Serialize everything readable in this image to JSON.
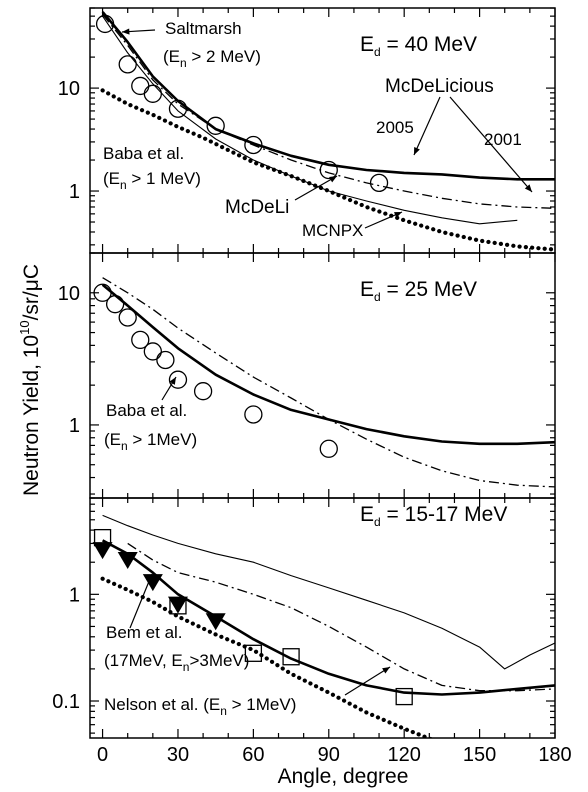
{
  "chart_data": {
    "type": "line",
    "xlabel": "Angle, degree",
    "ylabel_main": "Neutron Yield,",
    "ylabel_base": "10",
    "ylabel_exp": "10",
    "ylabel_unit": "/sr/μC",
    "x_ticks": [
      "0",
      "30",
      "60",
      "90",
      "120",
      "150",
      "180"
    ],
    "xlim": [
      -5,
      180
    ],
    "panels": [
      {
        "title": {
          "pre": "E",
          "sub": "d",
          "post": " = 40 MeV"
        },
        "yscale": "log",
        "ylim": [
          0.25,
          60
        ],
        "y_ticks": [
          {
            "v": 1,
            "label": "1"
          },
          {
            "v": 10,
            "label": "10"
          }
        ],
        "series": [
          {
            "name": "McDeLicious 2005",
            "style": "solid-thick",
            "points": [
              [
                0,
                55
              ],
              [
                10,
                28
              ],
              [
                20,
                13
              ],
              [
                30,
                7.5
              ],
              [
                45,
                4
              ],
              [
                60,
                2.9
              ],
              [
                75,
                2.2
              ],
              [
                90,
                1.8
              ],
              [
                105,
                1.6
              ],
              [
                120,
                1.5
              ],
              [
                135,
                1.45
              ],
              [
                150,
                1.35
              ],
              [
                165,
                1.3
              ],
              [
                180,
                1.3
              ]
            ]
          },
          {
            "name": "McDeLicious 2001",
            "style": "dashdot",
            "points": [
              [
                0,
                52
              ],
              [
                10,
                26
              ],
              [
                20,
                12
              ],
              [
                30,
                7
              ],
              [
                45,
                4
              ],
              [
                60,
                2.8
              ],
              [
                75,
                2
              ],
              [
                90,
                1.5
              ],
              [
                105,
                1.2
              ],
              [
                120,
                1
              ],
              [
                135,
                0.85
              ],
              [
                150,
                0.75
              ],
              [
                165,
                0.7
              ],
              [
                180,
                0.68
              ]
            ]
          },
          {
            "name": "McDeLi",
            "style": "solid-thin",
            "points": [
              [
                0,
                50
              ],
              [
                10,
                22
              ],
              [
                20,
                11
              ],
              [
                30,
                6
              ],
              [
                45,
                3.2
              ],
              [
                60,
                2
              ],
              [
                75,
                1.4
              ],
              [
                90,
                1
              ],
              [
                105,
                0.8
              ],
              [
                120,
                0.65
              ],
              [
                135,
                0.55
              ],
              [
                150,
                0.48
              ],
              [
                165,
                0.52
              ]
            ]
          },
          {
            "name": "MCNPX",
            "style": "dotted",
            "points": [
              [
                0,
                9.5
              ],
              [
                10,
                7
              ],
              [
                20,
                5.5
              ],
              [
                30,
                4.2
              ],
              [
                40,
                3.3
              ],
              [
                50,
                2.5
              ],
              [
                60,
                1.9
              ],
              [
                75,
                1.4
              ],
              [
                90,
                1
              ],
              [
                105,
                0.7
              ],
              [
                120,
                0.52
              ],
              [
                135,
                0.4
              ],
              [
                150,
                0.33
              ],
              [
                165,
                0.29
              ],
              [
                180,
                0.27
              ]
            ]
          }
        ],
        "experiments": [
          {
            "name": "Saltmarsh",
            "marker": "circle",
            "points": [
              [
                1,
                42
              ]
            ]
          },
          {
            "name": "Baba et al.",
            "marker": "circle",
            "points": [
              [
                10,
                17
              ],
              [
                15,
                10.5
              ],
              [
                20,
                8.8
              ],
              [
                30,
                6.3
              ],
              [
                45,
                4.3
              ],
              [
                60,
                2.8
              ],
              [
                90,
                1.6
              ],
              [
                110,
                1.2
              ]
            ]
          }
        ],
        "annotations": {
          "saltmarsh": "Saltmarsh",
          "saltmarsh_cond": {
            "pre": "(E",
            "sub": "n",
            "post": " > 2 MeV)"
          },
          "mcdelicious": "McDeLicious",
          "y2005": "2005",
          "y2001": "2001",
          "baba": "Baba et al.",
          "baba_cond": {
            "pre": "(E",
            "sub": "n",
            "post": " > 1 MeV)"
          },
          "mcdeli": "McDeLi",
          "mcnpx": "MCNPX"
        }
      },
      {
        "title": {
          "pre": "E",
          "sub": "d",
          "post": " = 25 MeV"
        },
        "yscale": "log",
        "ylim": [
          0.28,
          20
        ],
        "y_ticks": [
          {
            "v": 1,
            "label": "1"
          },
          {
            "v": 10,
            "label": "10"
          }
        ],
        "series": [
          {
            "name": "McDeLicious 2005",
            "style": "solid-thick",
            "points": [
              [
                0,
                11.5
              ],
              [
                10,
                8
              ],
              [
                20,
                5.5
              ],
              [
                30,
                3.8
              ],
              [
                45,
                2.4
              ],
              [
                60,
                1.7
              ],
              [
                75,
                1.3
              ],
              [
                90,
                1.1
              ],
              [
                105,
                0.93
              ],
              [
                120,
                0.82
              ],
              [
                135,
                0.75
              ],
              [
                150,
                0.72
              ],
              [
                165,
                0.72
              ],
              [
                180,
                0.74
              ]
            ]
          },
          {
            "name": "McDeLicious 2001",
            "style": "dashdot",
            "points": [
              [
                0,
                13
              ],
              [
                10,
                10
              ],
              [
                20,
                7.5
              ],
              [
                30,
                5.4
              ],
              [
                45,
                3.5
              ],
              [
                60,
                2.3
              ],
              [
                75,
                1.6
              ],
              [
                90,
                1.1
              ],
              [
                105,
                0.78
              ],
              [
                120,
                0.57
              ],
              [
                135,
                0.45
              ],
              [
                150,
                0.38
              ],
              [
                165,
                0.35
              ],
              [
                180,
                0.34
              ]
            ]
          }
        ],
        "experiments": [
          {
            "name": "Baba et al.",
            "marker": "circle",
            "points": [
              [
                0,
                10
              ],
              [
                5,
                8.2
              ],
              [
                10,
                6.5
              ],
              [
                15,
                4.4
              ],
              [
                20,
                3.6
              ],
              [
                25,
                3.1
              ],
              [
                30,
                2.2
              ],
              [
                40,
                1.8
              ],
              [
                60,
                1.2
              ],
              [
                90,
                0.66
              ]
            ]
          }
        ],
        "annotations": {
          "baba": "Baba et al.",
          "baba_cond": {
            "pre": "(E",
            "sub": "n",
            "post": " > 1MeV)"
          }
        }
      },
      {
        "title": {
          "pre": "E",
          "sub": "d",
          "post": " = 15-17 MeV"
        },
        "yscale": "log",
        "ylim": [
          0.045,
          8
        ],
        "y_ticks": [
          {
            "v": 0.1,
            "label": "0.1"
          },
          {
            "v": 1,
            "label": "1"
          }
        ],
        "series": [
          {
            "name": "McDeLicious 2005",
            "style": "solid-thick",
            "points": [
              [
                0,
                3.2
              ],
              [
                10,
                2.4
              ],
              [
                20,
                1.6
              ],
              [
                30,
                1
              ],
              [
                45,
                0.62
              ],
              [
                60,
                0.38
              ],
              [
                75,
                0.25
              ],
              [
                90,
                0.18
              ],
              [
                105,
                0.14
              ],
              [
                120,
                0.12
              ],
              [
                135,
                0.115
              ],
              [
                150,
                0.12
              ],
              [
                165,
                0.13
              ],
              [
                180,
                0.14
              ]
            ]
          },
          {
            "name": "McDeLicious 2001",
            "style": "dashdot",
            "points": [
              [
                10,
                3
              ],
              [
                20,
                2.1
              ],
              [
                30,
                1.6
              ],
              [
                45,
                1.3
              ],
              [
                60,
                1
              ],
              [
                75,
                0.75
              ],
              [
                90,
                0.5
              ],
              [
                105,
                0.32
              ],
              [
                120,
                0.2
              ],
              [
                135,
                0.14
              ],
              [
                150,
                0.125
              ],
              [
                165,
                0.125
              ],
              [
                180,
                0.13
              ]
            ]
          },
          {
            "name": "McDeLi",
            "style": "solid-thin",
            "points": [
              [
                0,
                5.5
              ],
              [
                10,
                4.4
              ],
              [
                20,
                3.6
              ],
              [
                30,
                3
              ],
              [
                45,
                2.4
              ],
              [
                60,
                2
              ],
              [
                75,
                1.5
              ],
              [
                90,
                1.15
              ],
              [
                105,
                0.88
              ],
              [
                120,
                0.67
              ],
              [
                135,
                0.48
              ],
              [
                150,
                0.32
              ],
              [
                160,
                0.2
              ],
              [
                170,
                0.27
              ],
              [
                180,
                0.35
              ]
            ]
          },
          {
            "name": "MCNPX",
            "style": "dotted",
            "points": [
              [
                0,
                1.4
              ],
              [
                10,
                1.1
              ],
              [
                20,
                0.85
              ],
              [
                30,
                0.62
              ],
              [
                45,
                0.42
              ],
              [
                60,
                0.3
              ],
              [
                75,
                0.18
              ],
              [
                90,
                0.12
              ],
              [
                105,
                0.078
              ],
              [
                120,
                0.055
              ],
              [
                135,
                0.04
              ]
            ]
          }
        ],
        "experiments": [
          {
            "name": "Bem et al.",
            "marker": "triangle-down",
            "points": [
              [
                0,
                2.6
              ],
              [
                10,
                2.1
              ],
              [
                20,
                1.3
              ],
              [
                30,
                0.8
              ],
              [
                45,
                0.56
              ]
            ]
          },
          {
            "name": "Nelson et al.",
            "marker": "square",
            "points": [
              [
                0,
                3.4
              ],
              [
                30,
                0.78
              ],
              [
                60,
                0.28
              ],
              [
                75,
                0.26
              ],
              [
                120,
                0.11
              ]
            ]
          }
        ],
        "annotations": {
          "bem": "Bem et al.",
          "bem_cond": {
            "pre": "(17MeV, E",
            "sub": "n",
            "post": ">3MeV)"
          },
          "nelson": {
            "pre": "Nelson et al. (E",
            "sub": "n",
            "post": " > 1MeV)"
          }
        }
      }
    ]
  }
}
